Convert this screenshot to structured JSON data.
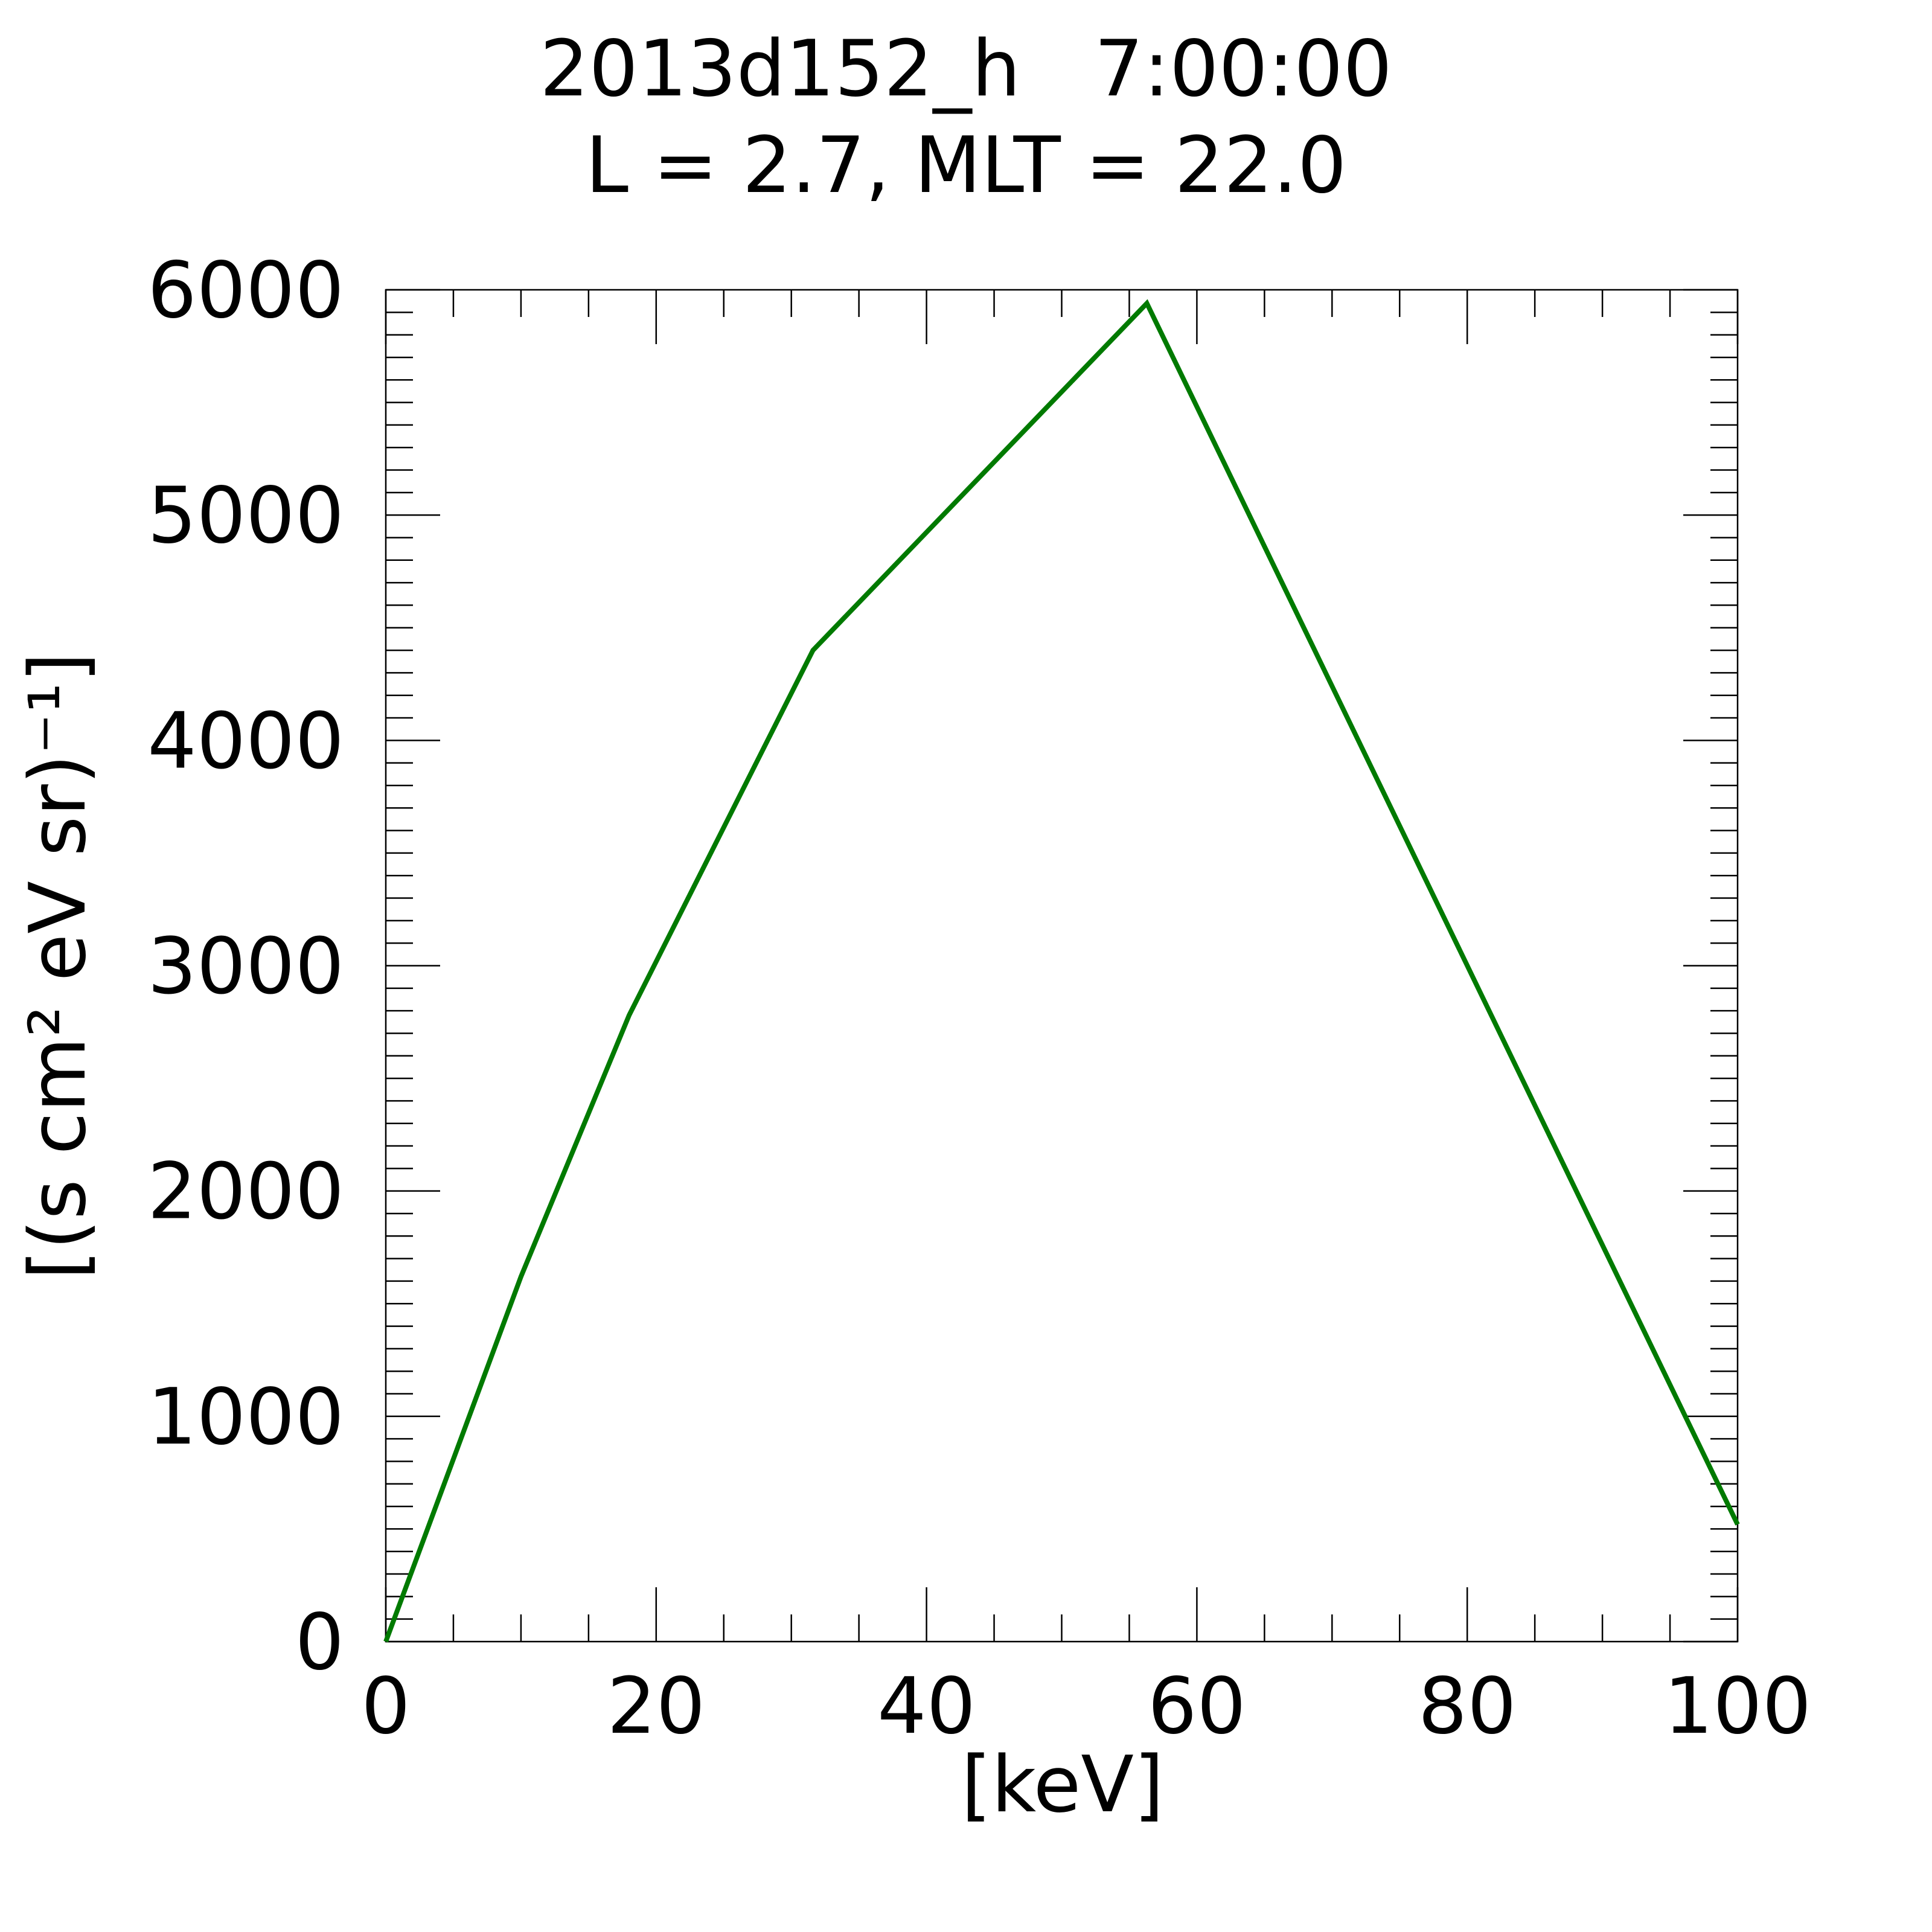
{
  "chart_data": {
    "type": "line",
    "title": "2013d152_h   7:00:00",
    "subtitle": "L = 2.7, MLT = 22.0",
    "x_label": "[keV]",
    "y_label": "[(s cm² eV sr)⁻¹]",
    "x": [
      0,
      10,
      18,
      31.6,
      56.3,
      100
    ],
    "series": [
      {
        "color": "#007a00",
        "values": [
          0,
          1620,
          2780,
          4400,
          5940,
          520
        ]
      }
    ],
    "xlim": [
      0,
      100
    ],
    "xticks": [
      0,
      20,
      40,
      60,
      80,
      100
    ],
    "ylim": [
      0,
      6000
    ],
    "yticks": [
      0,
      1000,
      2000,
      3000,
      4000,
      5000,
      6000
    ],
    "grid": false
  }
}
